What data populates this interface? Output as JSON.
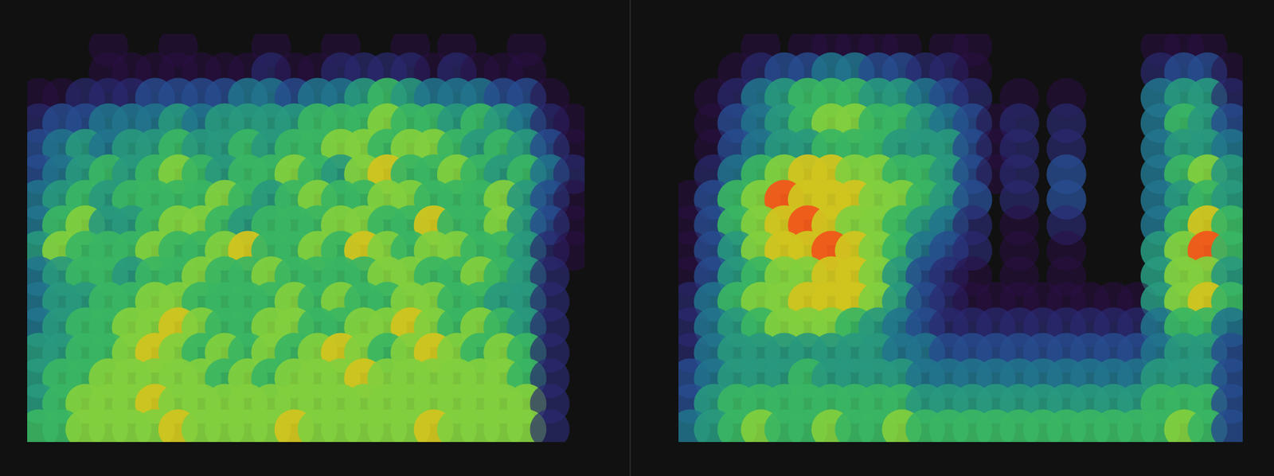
{
  "chart_data": [
    {
      "type": "heatmap",
      "grid": false,
      "tick_labels": false,
      "cells": [
        [
          0,
          0,
          0,
          1,
          0,
          0,
          1,
          0,
          0,
          0,
          1,
          0,
          0,
          1,
          0,
          0,
          1,
          0,
          1,
          0,
          0,
          1,
          0,
          0
        ],
        [
          0,
          0,
          0,
          1,
          1,
          1,
          1,
          1,
          1,
          1,
          2,
          1,
          1,
          2,
          2,
          2,
          2,
          1,
          2,
          1,
          1,
          1,
          0,
          0
        ],
        [
          1,
          1,
          2,
          2,
          2,
          3,
          3,
          3,
          3,
          4,
          4,
          3,
          4,
          4,
          5,
          6,
          5,
          4,
          4,
          4,
          3,
          3,
          1,
          0
        ],
        [
          2,
          3,
          3,
          4,
          4,
          4,
          5,
          4,
          5,
          5,
          5,
          5,
          6,
          6,
          6,
          7,
          6,
          6,
          5,
          6,
          5,
          4,
          2,
          1
        ],
        [
          3,
          4,
          5,
          4,
          5,
          5,
          6,
          5,
          5,
          6,
          5,
          6,
          6,
          7,
          7,
          6,
          7,
          7,
          6,
          5,
          6,
          5,
          3,
          1
        ],
        [
          3,
          4,
          5,
          6,
          5,
          6,
          7,
          6,
          5,
          6,
          6,
          7,
          6,
          5,
          7,
          8,
          6,
          6,
          7,
          6,
          5,
          6,
          4,
          2
        ],
        [
          4,
          5,
          6,
          5,
          6,
          6,
          6,
          6,
          7,
          6,
          5,
          6,
          7,
          6,
          6,
          7,
          7,
          6,
          6,
          6,
          7,
          5,
          3,
          1
        ],
        [
          4,
          6,
          7,
          5,
          5,
          6,
          7,
          7,
          6,
          5,
          6,
          6,
          6,
          7,
          7,
          6,
          6,
          8,
          6,
          6,
          7,
          5,
          3,
          1
        ],
        [
          5,
          7,
          6,
          6,
          6,
          7,
          6,
          6,
          7,
          8,
          6,
          6,
          7,
          6,
          8,
          7,
          6,
          7,
          7,
          6,
          6,
          5,
          2,
          1
        ],
        [
          4,
          5,
          6,
          6,
          5,
          6,
          6,
          7,
          6,
          6,
          7,
          6,
          6,
          6,
          6,
          7,
          7,
          6,
          6,
          7,
          6,
          5,
          2,
          0
        ],
        [
          4,
          5,
          5,
          6,
          6,
          7,
          7,
          6,
          6,
          6,
          6,
          7,
          6,
          7,
          6,
          6,
          7,
          7,
          6,
          6,
          5,
          5,
          2,
          0
        ],
        [
          4,
          5,
          6,
          6,
          7,
          7,
          8,
          7,
          6,
          6,
          7,
          7,
          6,
          6,
          7,
          7,
          8,
          7,
          6,
          7,
          6,
          5,
          2,
          0
        ],
        [
          5,
          5,
          6,
          6,
          7,
          8,
          7,
          6,
          7,
          6,
          7,
          6,
          7,
          8,
          7,
          6,
          7,
          8,
          7,
          6,
          7,
          6,
          2,
          0
        ],
        [
          5,
          6,
          6,
          7,
          7,
          7,
          7,
          7,
          6,
          7,
          6,
          7,
          7,
          7,
          8,
          7,
          7,
          7,
          7,
          7,
          7,
          6,
          2,
          0
        ],
        [
          5,
          6,
          7,
          7,
          7,
          8,
          7,
          7,
          7,
          7,
          7,
          7,
          7,
          7,
          7,
          7,
          7,
          7,
          7,
          7,
          7,
          7,
          2,
          0
        ],
        [
          6,
          6,
          7,
          7,
          7,
          7,
          8,
          7,
          7,
          7,
          7,
          8,
          7,
          7,
          7,
          7,
          7,
          8,
          7,
          7,
          7,
          7,
          2,
          0
        ]
      ]
    },
    {
      "type": "heatmap",
      "grid": false,
      "tick_labels": false,
      "cells": [
        [
          0,
          0,
          0,
          1,
          0,
          1,
          1,
          1,
          1,
          1,
          0,
          1,
          1,
          0,
          0,
          0,
          0,
          0,
          0,
          0,
          1,
          1,
          1,
          0
        ],
        [
          0,
          0,
          1,
          2,
          3,
          3,
          4,
          4,
          3,
          3,
          2,
          2,
          1,
          0,
          0,
          0,
          0,
          0,
          0,
          0,
          2,
          3,
          3,
          1
        ],
        [
          0,
          1,
          2,
          4,
          5,
          6,
          6,
          6,
          5,
          5,
          4,
          3,
          2,
          0,
          1,
          0,
          1,
          0,
          0,
          0,
          4,
          5,
          5,
          2
        ],
        [
          0,
          1,
          3,
          4,
          5,
          6,
          7,
          7,
          6,
          6,
          5,
          4,
          3,
          1,
          2,
          0,
          2,
          0,
          0,
          0,
          4,
          6,
          5,
          3
        ],
        [
          0,
          1,
          3,
          4,
          5,
          5,
          6,
          6,
          6,
          5,
          5,
          5,
          3,
          1,
          2,
          0,
          2,
          0,
          0,
          0,
          4,
          5,
          5,
          4
        ],
        [
          0,
          2,
          4,
          6,
          7,
          8,
          8,
          7,
          7,
          6,
          6,
          5,
          3,
          1,
          2,
          0,
          3,
          0,
          0,
          0,
          4,
          6,
          7,
          5
        ],
        [
          1,
          3,
          6,
          7,
          9,
          8,
          8,
          8,
          7,
          7,
          6,
          5,
          3,
          0,
          2,
          0,
          3,
          0,
          0,
          0,
          4,
          5,
          6,
          5
        ],
        [
          1,
          3,
          6,
          7,
          8,
          9,
          8,
          7,
          7,
          6,
          5,
          4,
          2,
          0,
          1,
          0,
          2,
          0,
          0,
          0,
          4,
          6,
          8,
          6
        ],
        [
          1,
          3,
          5,
          7,
          8,
          8,
          9,
          8,
          7,
          6,
          4,
          3,
          2,
          0,
          1,
          0,
          1,
          0,
          0,
          0,
          5,
          7,
          9,
          6
        ],
        [
          1,
          3,
          5,
          6,
          7,
          7,
          8,
          8,
          7,
          5,
          3,
          2,
          1,
          0,
          1,
          0,
          1,
          0,
          0,
          0,
          5,
          7,
          7,
          5
        ],
        [
          2,
          4,
          6,
          7,
          7,
          8,
          8,
          8,
          7,
          5,
          3,
          2,
          1,
          1,
          1,
          1,
          1,
          1,
          1,
          1,
          5,
          7,
          8,
          6
        ],
        [
          2,
          4,
          5,
          6,
          7,
          7,
          7,
          6,
          5,
          4,
          3,
          2,
          2,
          2,
          2,
          2,
          2,
          2,
          2,
          2,
          4,
          6,
          6,
          4
        ],
        [
          2,
          4,
          5,
          5,
          5,
          5,
          5,
          5,
          5,
          4,
          4,
          3,
          3,
          3,
          3,
          3,
          3,
          3,
          3,
          3,
          4,
          5,
          5,
          3
        ],
        [
          3,
          4,
          5,
          5,
          5,
          6,
          5,
          5,
          5,
          5,
          4,
          4,
          4,
          4,
          4,
          4,
          4,
          4,
          4,
          4,
          5,
          5,
          5,
          3
        ],
        [
          3,
          5,
          6,
          6,
          6,
          6,
          6,
          6,
          6,
          6,
          5,
          5,
          5,
          5,
          5,
          5,
          5,
          5,
          5,
          5,
          6,
          6,
          6,
          3
        ],
        [
          4,
          5,
          6,
          7,
          6,
          6,
          7,
          6,
          6,
          7,
          6,
          6,
          6,
          6,
          6,
          6,
          6,
          6,
          6,
          6,
          6,
          7,
          6,
          3
        ]
      ]
    }
  ]
}
